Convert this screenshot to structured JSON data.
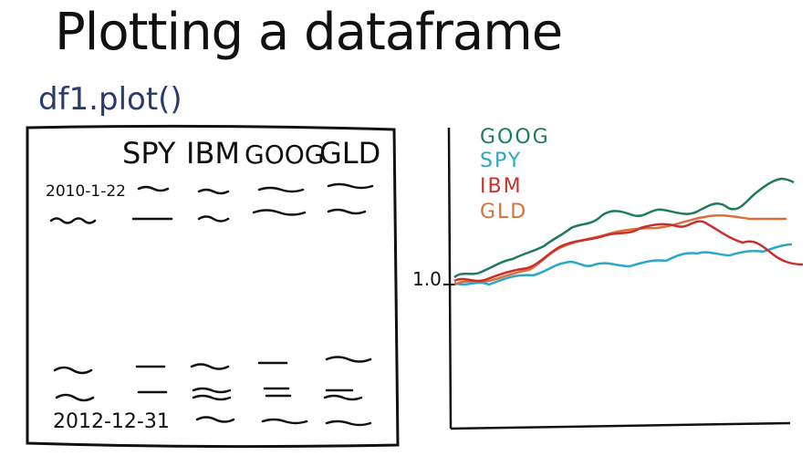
{
  "title": "Plotting a dataframe",
  "code": "df1.plot()",
  "table": {
    "columns": [
      "SPY",
      "IBM",
      "GOOG",
      "GLD"
    ],
    "first_date": "2010-1-22",
    "last_date": "2012-12-31"
  },
  "chart_data": {
    "type": "line",
    "y_tick_label": "1.0",
    "series": [
      {
        "name": "GOOG",
        "color": "#1f7a5f"
      },
      {
        "name": "SPY",
        "color": "#2aa7c9"
      },
      {
        "name": "IBM",
        "color": "#c9302c"
      },
      {
        "name": "GLD",
        "color": "#d9703a"
      }
    ]
  }
}
